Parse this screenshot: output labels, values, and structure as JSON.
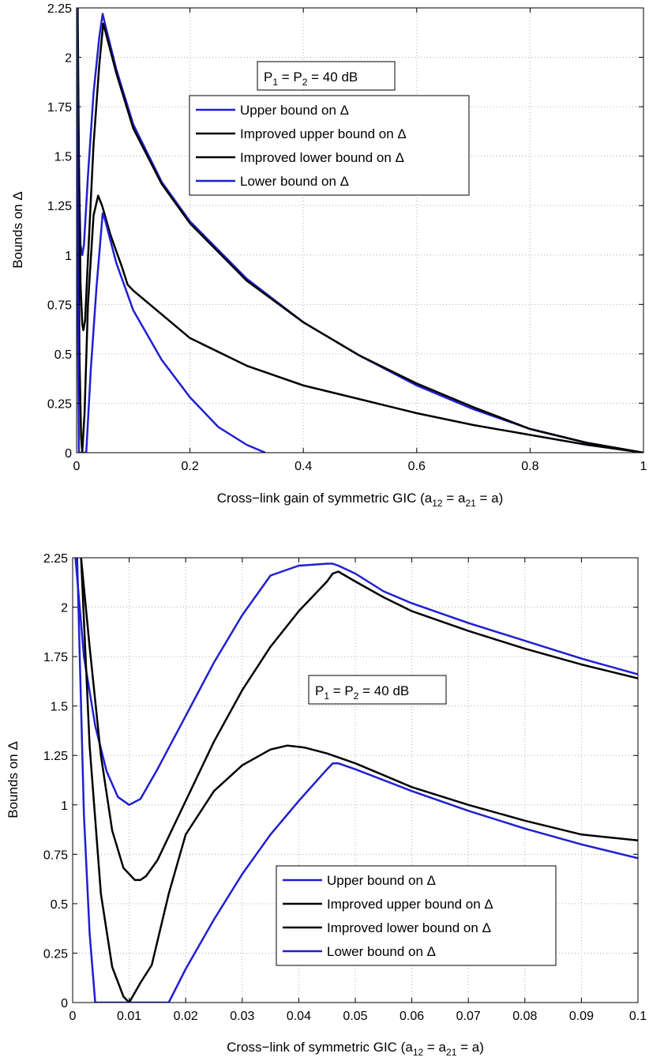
{
  "chart_data": [
    {
      "type": "line",
      "xlabel": "Cross−link gain of symmetric GIC (a",
      "xlabel_sub1": "12",
      "xlabel_mid": " = a",
      "xlabel_sub2": "21",
      "xlabel_end": " = a)",
      "ylabel": "Bounds on Δ",
      "xlim": [
        0,
        1
      ],
      "ylim": [
        0,
        2.25
      ],
      "x_ticks": [
        0,
        0.2,
        0.4,
        0.6,
        0.8,
        1
      ],
      "x_tick_labels": [
        "0",
        "0.2",
        "0.4",
        "0.6",
        "0.8",
        "1"
      ],
      "y_ticks": [
        0,
        0.25,
        0.5,
        0.75,
        1,
        1.25,
        1.5,
        1.75,
        2,
        2.25
      ],
      "y_tick_labels": [
        "0",
        "0.25",
        "0.5",
        "0.75",
        "1",
        "1.25",
        "1.5",
        "1.75",
        "2",
        "2.25"
      ],
      "grid": true,
      "legend_position": "center",
      "annotation": {
        "p1": "P",
        "sub1": "1",
        "mid": " = P",
        "sub2": "2",
        "end": " = 40 dB"
      },
      "series": [
        {
          "name": "Upper bound on Δ",
          "color": "#1f1fd0",
          "x": [
            0.001,
            0.004,
            0.007,
            0.01,
            0.013,
            0.02,
            0.03,
            0.04,
            0.046,
            0.05,
            0.07,
            0.1,
            0.15,
            0.2,
            0.3,
            0.4,
            0.5,
            0.6,
            0.7,
            0.8,
            0.9,
            1.0
          ],
          "y": [
            2.25,
            1.4,
            1.05,
            1.0,
            1.05,
            1.4,
            1.82,
            2.1,
            2.22,
            2.17,
            1.94,
            1.66,
            1.37,
            1.17,
            0.88,
            0.66,
            0.49,
            0.34,
            0.22,
            0.12,
            0.05,
            0
          ]
        },
        {
          "name": "Improved upper bound on Δ",
          "color": "#000000",
          "x": [
            0.002,
            0.004,
            0.007,
            0.01,
            0.012,
            0.015,
            0.02,
            0.03,
            0.04,
            0.047,
            0.05,
            0.07,
            0.1,
            0.15,
            0.2,
            0.3,
            0.4,
            0.5,
            0.6,
            0.7,
            0.8,
            0.9,
            1.0
          ],
          "y": [
            2.25,
            1.5,
            0.85,
            0.65,
            0.62,
            0.67,
            0.98,
            1.56,
            1.96,
            2.17,
            2.14,
            1.92,
            1.64,
            1.36,
            1.16,
            0.87,
            0.66,
            0.49,
            0.35,
            0.23,
            0.12,
            0.05,
            0
          ]
        },
        {
          "name": "Improved lower bound on Δ",
          "color": "#000000",
          "x": [
            0.001,
            0.003,
            0.005,
            0.008,
            0.01,
            0.012,
            0.014,
            0.02,
            0.03,
            0.038,
            0.045,
            0.06,
            0.08,
            0.09,
            0.1,
            0.2,
            0.3,
            0.4,
            0.5,
            0.6,
            0.7,
            0.8,
            0.9,
            1.0
          ],
          "y": [
            2.25,
            1.4,
            0.5,
            0.08,
            0.0,
            0.1,
            0.2,
            0.75,
            1.2,
            1.3,
            1.25,
            1.1,
            0.94,
            0.85,
            0.82,
            0.58,
            0.44,
            0.34,
            0.27,
            0.2,
            0.14,
            0.09,
            0.04,
            0
          ]
        },
        {
          "name": "Lower bound on Δ",
          "color": "#1f1fd0",
          "x": [
            0.001,
            0.002,
            0.003,
            0.004,
            0.017,
            0.025,
            0.035,
            0.046,
            0.05,
            0.07,
            0.1,
            0.15,
            0.2,
            0.25,
            0.3,
            0.333
          ],
          "y": [
            2.25,
            0.85,
            0.35,
            0.0,
            0.0,
            0.42,
            0.83,
            1.21,
            1.18,
            0.96,
            0.72,
            0.47,
            0.28,
            0.13,
            0.04,
            0
          ]
        }
      ]
    },
    {
      "type": "line",
      "xlabel": "Cross−link of symmetric GIC (a",
      "xlabel_sub1": "12",
      "xlabel_mid": " = a",
      "xlabel_sub2": "21",
      "xlabel_end": " = a)",
      "ylabel": "Bounds on Δ",
      "xlim": [
        0,
        0.1
      ],
      "ylim": [
        0,
        2.25
      ],
      "x_ticks": [
        0,
        0.01,
        0.02,
        0.03,
        0.04,
        0.05,
        0.06,
        0.07,
        0.08,
        0.09,
        0.1
      ],
      "x_tick_labels": [
        "0",
        "0.01",
        "0.02",
        "0.03",
        "0.04",
        "0.05",
        "0.06",
        "0.07",
        "0.08",
        "0.09",
        "0.1"
      ],
      "y_ticks": [
        0,
        0.25,
        0.5,
        0.75,
        1,
        1.25,
        1.5,
        1.75,
        2,
        2.25
      ],
      "y_tick_labels": [
        "0",
        "0.25",
        "0.5",
        "0.75",
        "1",
        "1.25",
        "1.5",
        "1.75",
        "2",
        "2.25"
      ],
      "grid": true,
      "legend_position": "bottom-right",
      "annotation": {
        "p1": "P",
        "sub1": "1",
        "mid": " = P",
        "sub2": "2",
        "end": " = 40 dB"
      },
      "series": [
        {
          "name": "Upper bound on Δ",
          "color": "#1f1fd0",
          "x": [
            0.0005,
            0.002,
            0.004,
            0.006,
            0.008,
            0.01,
            0.012,
            0.015,
            0.02,
            0.025,
            0.03,
            0.035,
            0.04,
            0.045,
            0.046,
            0.047,
            0.05,
            0.055,
            0.06,
            0.07,
            0.08,
            0.09,
            0.1
          ],
          "y": [
            2.25,
            1.75,
            1.4,
            1.17,
            1.04,
            1.0,
            1.03,
            1.18,
            1.45,
            1.72,
            1.96,
            2.16,
            2.21,
            2.22,
            2.22,
            2.21,
            2.17,
            2.08,
            2.02,
            1.92,
            1.83,
            1.74,
            1.66
          ]
        },
        {
          "name": "Improved upper bound on Δ",
          "color": "#000000",
          "x": [
            0.0015,
            0.003,
            0.005,
            0.007,
            0.009,
            0.011,
            0.012,
            0.013,
            0.015,
            0.02,
            0.025,
            0.03,
            0.035,
            0.04,
            0.045,
            0.046,
            0.047,
            0.05,
            0.055,
            0.06,
            0.07,
            0.08,
            0.09,
            0.1
          ],
          "y": [
            2.25,
            1.8,
            1.25,
            0.87,
            0.68,
            0.62,
            0.62,
            0.64,
            0.72,
            1.02,
            1.32,
            1.58,
            1.8,
            1.98,
            2.13,
            2.17,
            2.18,
            2.13,
            2.05,
            1.98,
            1.88,
            1.79,
            1.71,
            1.64
          ]
        },
        {
          "name": "Improved lower bound on Δ",
          "color": "#000000",
          "x": [
            0.0015,
            0.003,
            0.005,
            0.007,
            0.009,
            0.01,
            0.012,
            0.014,
            0.017,
            0.02,
            0.025,
            0.03,
            0.035,
            0.038,
            0.041,
            0.045,
            0.05,
            0.055,
            0.06,
            0.07,
            0.08,
            0.09,
            0.1
          ],
          "y": [
            2.25,
            1.3,
            0.55,
            0.18,
            0.03,
            0.0,
            0.1,
            0.19,
            0.55,
            0.85,
            1.07,
            1.2,
            1.28,
            1.3,
            1.29,
            1.26,
            1.21,
            1.15,
            1.09,
            1.0,
            0.92,
            0.85,
            0.82
          ]
        },
        {
          "name": "Lower bound on Δ",
          "color": "#1f1fd0",
          "x": [
            0.0008,
            0.002,
            0.003,
            0.004,
            0.017,
            0.02,
            0.025,
            0.03,
            0.035,
            0.04,
            0.045,
            0.046,
            0.047,
            0.05,
            0.06,
            0.07,
            0.08,
            0.09,
            0.1
          ],
          "y": [
            2.25,
            0.95,
            0.35,
            0.0,
            0.0,
            0.17,
            0.42,
            0.65,
            0.85,
            1.02,
            1.18,
            1.21,
            1.21,
            1.18,
            1.07,
            0.97,
            0.88,
            0.8,
            0.73
          ]
        }
      ]
    }
  ]
}
